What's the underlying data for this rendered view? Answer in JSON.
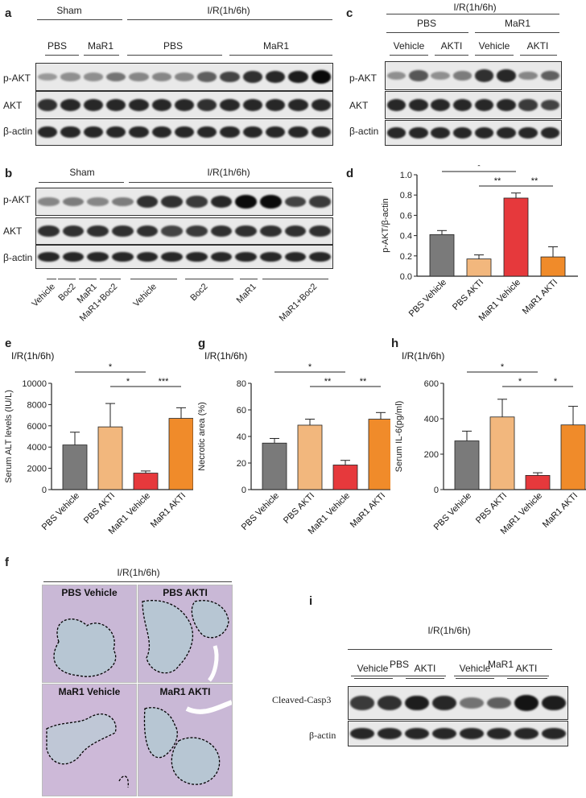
{
  "panel_labels": {
    "a": "a",
    "b": "b",
    "c": "c",
    "d": "d",
    "e": "e",
    "f": "f",
    "g": "g",
    "h": "h",
    "i": "i"
  },
  "groups": {
    "sham": "Sham",
    "ir": "I/R(1h/6h)",
    "pbs": "PBS",
    "mar1": "MaR1"
  },
  "treatments": {
    "vehicle": "Vehicle",
    "akti": "AKTI",
    "boc2": "Boc2",
    "mar1": "MaR1",
    "mar1_boc2": "MaR1+Boc2"
  },
  "proteins": {
    "pakt": "p-AKT",
    "akt": "AKT",
    "bactin": "β-actin",
    "casp3": "Cleaved-Casp3"
  },
  "histology": {
    "title": "I/R(1h/6h)",
    "pbs_vehicle": "PBS Vehicle",
    "pbs_akti": "PBS AKTI",
    "mar1_vehicle": "MaR1 Vehicle",
    "mar1_akti": "MaR1 AKTI"
  },
  "colors": {
    "gray": "#7a7a7a",
    "tan": "#f2b77d",
    "red": "#e6393c",
    "orange": "#f08b2a"
  },
  "chart_data": [
    {
      "id": "d",
      "type": "bar",
      "title": "",
      "condition": "",
      "ylabel": "p-AKT/β-actin",
      "ylim": [
        0,
        1.0
      ],
      "yticks": [
        "0.0",
        "0.2",
        "0.4",
        "0.6",
        "0.8",
        "1.0"
      ],
      "categories": [
        "PBS Vehicle",
        "PBS AKTI",
        "MaR1 Vehicle",
        "MaR1 AKTI"
      ],
      "values": [
        0.41,
        0.17,
        0.77,
        0.19
      ],
      "errors": [
        0.04,
        0.04,
        0.05,
        0.1
      ],
      "significance": [
        {
          "from": 0,
          "to": 2,
          "label": "*"
        },
        {
          "from": 1,
          "to": 2,
          "label": "**"
        },
        {
          "from": 2,
          "to": 3,
          "label": "**"
        }
      ]
    },
    {
      "id": "e",
      "type": "bar",
      "title": "",
      "condition": "I/R(1h/6h)",
      "ylabel": "Serum ALT levels (IU/L)",
      "ylim": [
        0,
        10000
      ],
      "yticks": [
        "0",
        "2000",
        "4000",
        "6000",
        "8000",
        "10000"
      ],
      "categories": [
        "PBS Vehicle",
        "PBS AKTI",
        "MaR1 Vehicle",
        "MaR1 AKTI"
      ],
      "values": [
        4200,
        5900,
        1550,
        6700
      ],
      "errors": [
        1200,
        2200,
        200,
        1000
      ],
      "significance": [
        {
          "from": 0,
          "to": 2,
          "label": "*"
        },
        {
          "from": 1,
          "to": 2,
          "label": "*"
        },
        {
          "from": 2,
          "to": 3,
          "label": "***"
        }
      ]
    },
    {
      "id": "g",
      "type": "bar",
      "title": "",
      "condition": "I/R(1h/6h)",
      "ylabel": "Necrotic area (%)",
      "ylim": [
        0,
        80
      ],
      "yticks": [
        "0",
        "20",
        "40",
        "60",
        "80"
      ],
      "categories": [
        "PBS Vehicle",
        "PBS AKTI",
        "MaR1 Vehicle",
        "MaR1 AKTI"
      ],
      "values": [
        35,
        48.5,
        18.5,
        53
      ],
      "errors": [
        3.5,
        4.5,
        3.5,
        5
      ],
      "significance": [
        {
          "from": 0,
          "to": 2,
          "label": "*"
        },
        {
          "from": 1,
          "to": 2,
          "label": "**"
        },
        {
          "from": 2,
          "to": 3,
          "label": "**"
        }
      ]
    },
    {
      "id": "h",
      "type": "bar",
      "title": "",
      "condition": "I/R(1h/6h)",
      "ylabel": "Serum IL-6(pg/ml)",
      "ylim": [
        0,
        600
      ],
      "yticks": [
        "0",
        "200",
        "400",
        "600"
      ],
      "categories": [
        "PBS Vehicle",
        "PBS AKTI",
        "MaR1 Vehicle",
        "MaR1 AKTI"
      ],
      "values": [
        275,
        410,
        80,
        365
      ],
      "errors": [
        55,
        100,
        15,
        105
      ],
      "significance": [
        {
          "from": 0,
          "to": 2,
          "label": "*"
        },
        {
          "from": 1,
          "to": 2,
          "label": "*"
        },
        {
          "from": 2,
          "to": 3,
          "label": "*"
        }
      ]
    }
  ]
}
